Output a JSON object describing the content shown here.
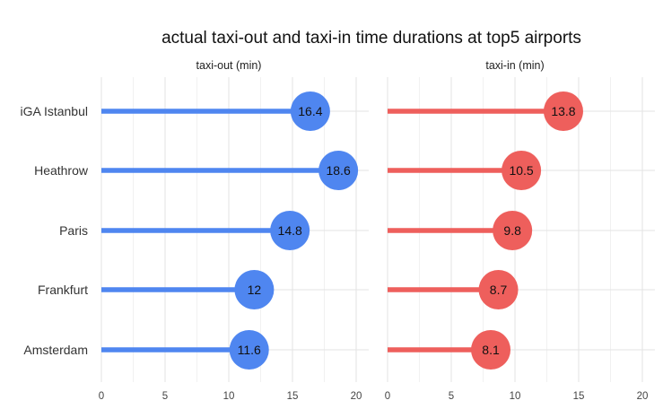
{
  "chart_data": {
    "type": "lollipop",
    "title": "actual taxi-out and taxi-in time durations at top5 airports",
    "categories": [
      "iGA Istanbul",
      "Heathrow",
      "Paris",
      "Frankfurt",
      "Amsterdam"
    ],
    "panels": [
      {
        "name": "taxi-out (min)",
        "color": "#4f86f0",
        "values": [
          16.4,
          18.6,
          14.8,
          12,
          11.6
        ],
        "xlim": [
          0,
          20
        ],
        "xticks": [
          0,
          5,
          10,
          15,
          20
        ]
      },
      {
        "name": "taxi-in (min)",
        "color": "#ee5f5c",
        "values": [
          13.8,
          10.5,
          9.8,
          8.7,
          8.1
        ],
        "xlim": [
          0,
          20
        ],
        "xticks": [
          0,
          5,
          10,
          15,
          20
        ]
      }
    ],
    "grid": true,
    "value_labels": [
      "16.4",
      "18.6",
      "14.8",
      "12",
      "11.6",
      "13.8",
      "10.5",
      "9.8",
      "8.7",
      "8.1"
    ]
  }
}
